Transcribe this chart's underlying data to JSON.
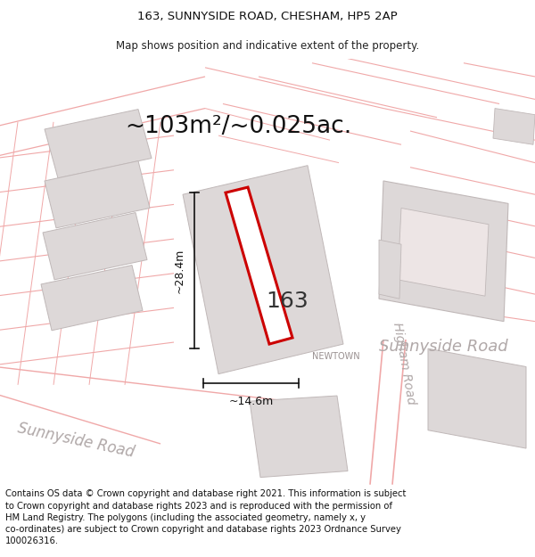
{
  "title_line1": "163, SUNNYSIDE ROAD, CHESHAM, HP5 2AP",
  "title_line2": "Map shows position and indicative extent of the property.",
  "area_text": "~103m²/~0.025ac.",
  "label_163": "163",
  "label_newtown": "NEWTOWN",
  "label_sunnyside_road_main": "Sunnyside Road",
  "label_sunnyside_road_diag": "Sunnyside Road",
  "label_higham_road": "Higham Road",
  "dim_height": "~28.4m",
  "dim_width": "~14.6m",
  "footer_text": "Contains OS data © Crown copyright and database right 2021. This information is subject\nto Crown copyright and database rights 2023 and is reproduced with the permission of\nHM Land Registry. The polygons (including the associated geometry, namely x, y\nco-ordinates) are subject to Crown copyright and database rights 2023 Ordnance Survey\n100026316.",
  "bg_color": "#ffffff",
  "map_bg": "#f9f5f5",
  "road_line_color": "#f0a8a8",
  "plot_outline_color": "#cc0000",
  "building_fill": "#ddd8d8",
  "building_edge": "#c0b8b8",
  "title_fontsize": 9.5,
  "subtitle_fontsize": 8.5,
  "area_fontsize": 19,
  "label_163_fontsize": 18,
  "footer_fontsize": 7.2,
  "road_label_color": "#b0a8a8",
  "newtown_color": "#999090",
  "dim_color": "#111111"
}
